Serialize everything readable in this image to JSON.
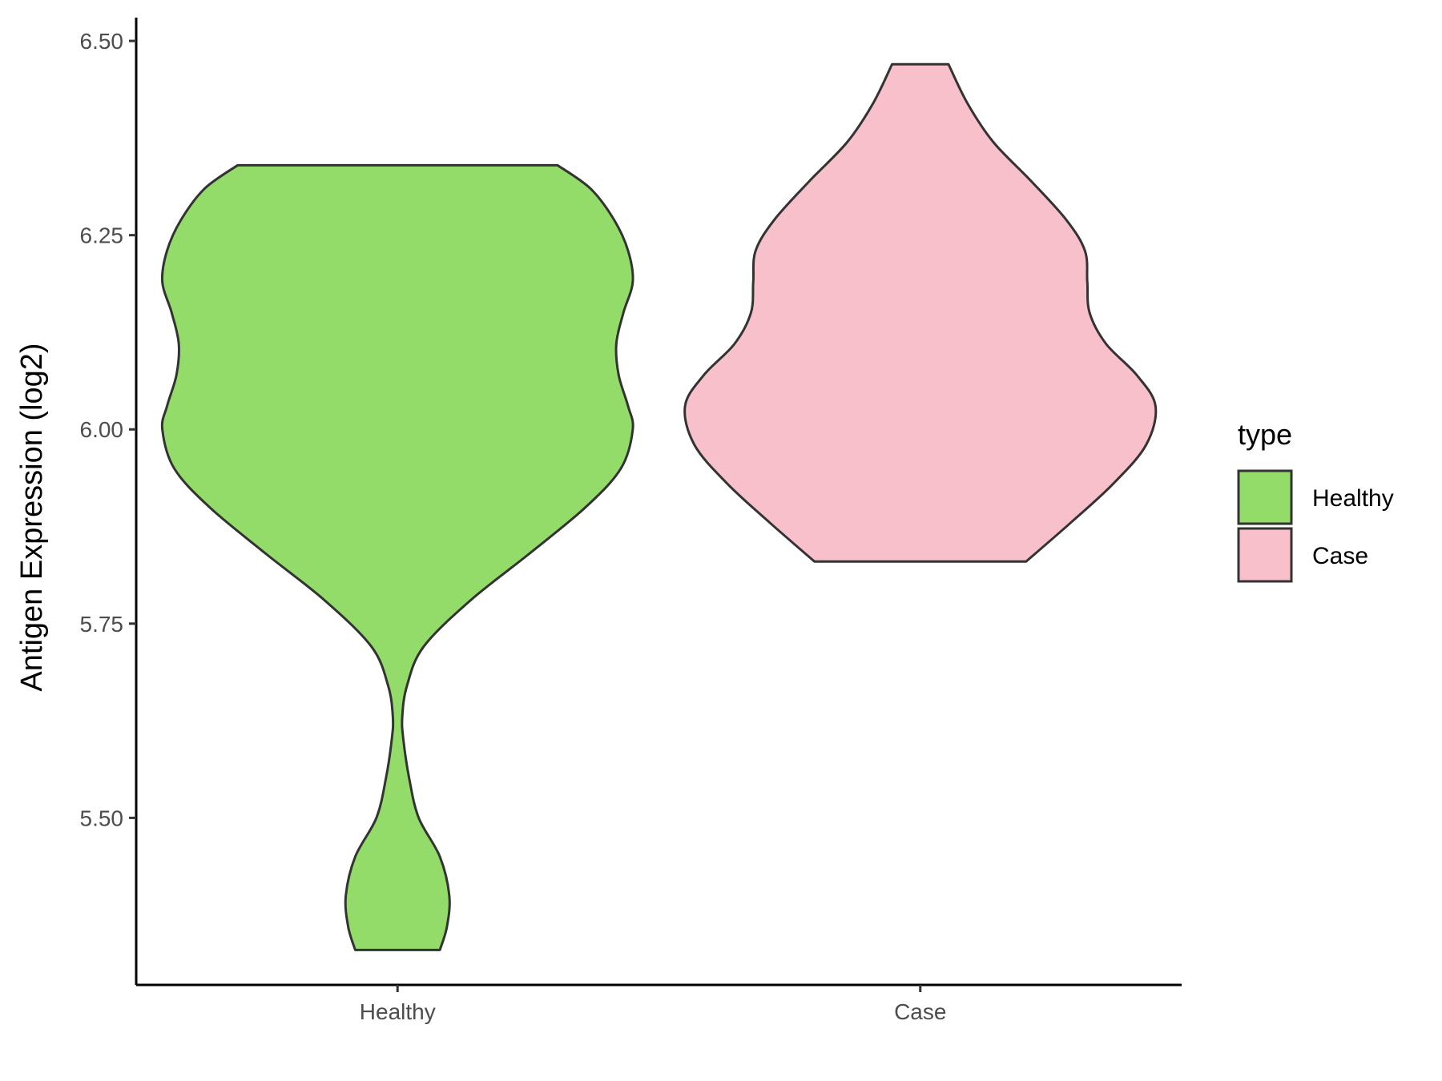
{
  "chart_data": {
    "type": "violin",
    "ylabel": "Antigen Expression (log2)",
    "xlabel": "",
    "ylim": [
      5.285,
      6.53
    ],
    "y_ticks": [
      "5.50",
      "5.75",
      "6.00",
      "6.25",
      "6.50"
    ],
    "y_tick_values": [
      5.5,
      5.75,
      6.0,
      6.25,
      6.5
    ],
    "categories": [
      "Healthy",
      "Case"
    ],
    "legend": {
      "title": "type",
      "placement": "right",
      "entries": [
        "Healthy",
        "Case"
      ]
    },
    "series": [
      {
        "name": "Healthy",
        "color": "#93dc6a",
        "y_min": 5.33,
        "y_max": 6.34,
        "profile": [
          [
            5.33,
            0.18
          ],
          [
            5.36,
            0.21
          ],
          [
            5.4,
            0.22
          ],
          [
            5.45,
            0.18
          ],
          [
            5.5,
            0.09
          ],
          [
            5.55,
            0.05
          ],
          [
            5.6,
            0.025
          ],
          [
            5.63,
            0.02
          ],
          [
            5.67,
            0.04
          ],
          [
            5.72,
            0.11
          ],
          [
            5.78,
            0.31
          ],
          [
            5.84,
            0.56
          ],
          [
            5.9,
            0.8
          ],
          [
            5.95,
            0.95
          ],
          [
            6.0,
            1.0
          ],
          [
            6.03,
            0.98
          ],
          [
            6.07,
            0.94
          ],
          [
            6.11,
            0.93
          ],
          [
            6.15,
            0.96
          ],
          [
            6.19,
            1.0
          ],
          [
            6.23,
            0.98
          ],
          [
            6.27,
            0.92
          ],
          [
            6.31,
            0.82
          ],
          [
            6.34,
            0.68
          ]
        ]
      },
      {
        "name": "Case",
        "color": "#f8c0cb",
        "y_min": 5.83,
        "y_max": 6.47,
        "profile": [
          [
            5.83,
            0.45
          ],
          [
            5.88,
            0.64
          ],
          [
            5.93,
            0.82
          ],
          [
            5.98,
            0.96
          ],
          [
            6.03,
            1.0
          ],
          [
            6.07,
            0.92
          ],
          [
            6.11,
            0.79
          ],
          [
            6.15,
            0.72
          ],
          [
            6.19,
            0.71
          ],
          [
            6.23,
            0.7
          ],
          [
            6.27,
            0.62
          ],
          [
            6.32,
            0.47
          ],
          [
            6.37,
            0.31
          ],
          [
            6.42,
            0.2
          ],
          [
            6.47,
            0.12
          ]
        ]
      }
    ]
  }
}
